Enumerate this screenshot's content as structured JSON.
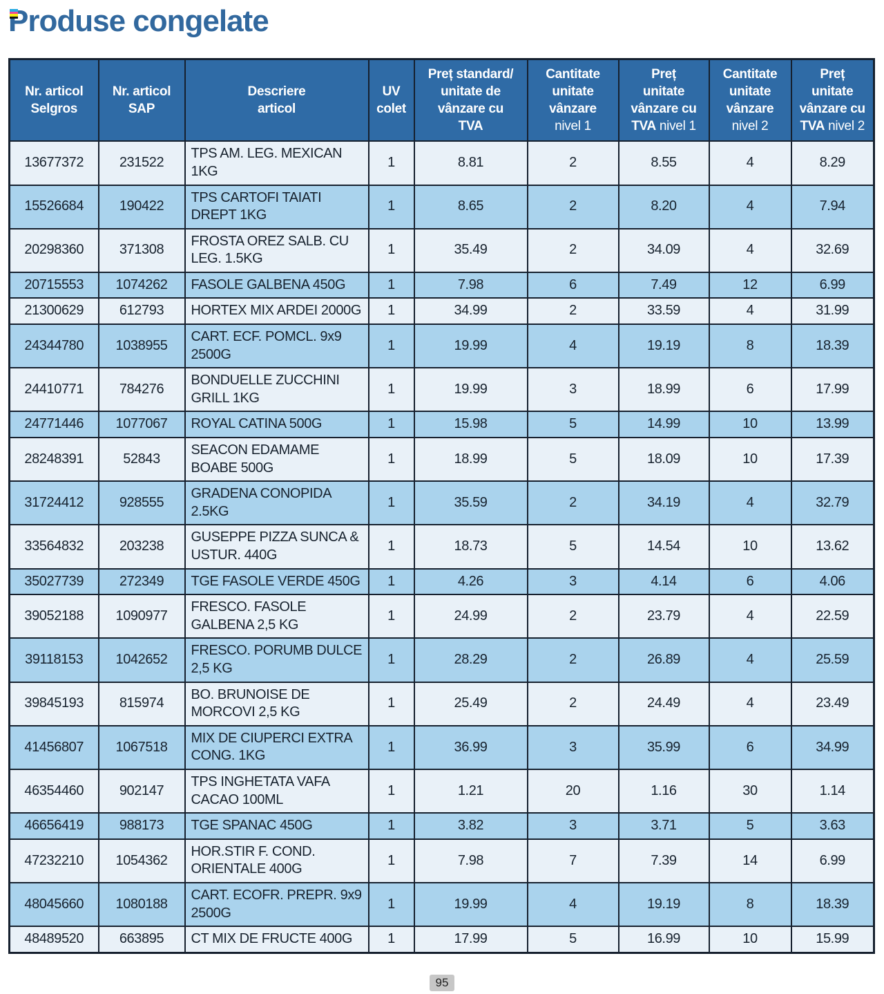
{
  "page": {
    "title": "Produse congelate",
    "page_number": "95",
    "title_color": "#31689e",
    "print_mark_colors": [
      "#29abe2",
      "#ec4899",
      "#f7ec13",
      "#111111"
    ]
  },
  "colors": {
    "header_bg": "#2f6ba6",
    "header_text": "#ffffff",
    "row_light": "#e9f1f8",
    "row_stripe": "#aad3ed",
    "border": "#16202e",
    "cell_text": "#17222e"
  },
  "table": {
    "columns": [
      {
        "key": "selgros",
        "bold": "Nr. articol\nSelgros",
        "normal": ""
      },
      {
        "key": "sap",
        "bold": "Nr. articol\nSAP",
        "normal": ""
      },
      {
        "key": "desc",
        "bold": "Descriere\narticol",
        "normal": ""
      },
      {
        "key": "uv",
        "bold": "UV\ncolet",
        "normal": ""
      },
      {
        "key": "std",
        "bold": "Preț standard/\nunitate de\nvânzare cu\nTVA",
        "normal": ""
      },
      {
        "key": "qty1",
        "bold": "Cantitate\nunitate\nvânzare",
        "normal": "\nnivel 1"
      },
      {
        "key": "p1",
        "bold": "Preț\nunitate\nvânzare cu\nTVA",
        "normal": " nivel 1"
      },
      {
        "key": "qty2",
        "bold": "Cantitate\nunitate\nvânzare",
        "normal": "\nnivel 2"
      },
      {
        "key": "p2",
        "bold": "Preț\nunitate\nvânzare cu\nTVA",
        "normal": " nivel 2"
      }
    ],
    "rows": [
      {
        "selgros": "13677372",
        "sap": "231522",
        "desc": "TPS AM. LEG. MEXICAN 1KG",
        "uv": "1",
        "std": "8.81",
        "qty1": "2",
        "p1": "8.55",
        "qty2": "4",
        "p2": "8.29"
      },
      {
        "selgros": "15526684",
        "sap": "190422",
        "desc": "TPS CARTOFI TAIATI DREPT 1KG",
        "uv": "1",
        "std": "8.65",
        "qty1": "2",
        "p1": "8.20",
        "qty2": "4",
        "p2": "7.94"
      },
      {
        "selgros": "20298360",
        "sap": "371308",
        "desc": "FROSTA OREZ SALB. CU LEG. 1.5KG",
        "uv": "1",
        "std": "35.49",
        "qty1": "2",
        "p1": "34.09",
        "qty2": "4",
        "p2": "32.69"
      },
      {
        "selgros": "20715553",
        "sap": "1074262",
        "desc": "FASOLE GALBENA 450G",
        "uv": "1",
        "std": "7.98",
        "qty1": "6",
        "p1": "7.49",
        "qty2": "12",
        "p2": "6.99"
      },
      {
        "selgros": "21300629",
        "sap": "612793",
        "desc": "HORTEX MIX ARDEI 2000G",
        "uv": "1",
        "std": "34.99",
        "qty1": "2",
        "p1": "33.59",
        "qty2": "4",
        "p2": "31.99"
      },
      {
        "selgros": "24344780",
        "sap": "1038955",
        "desc": "CART. ECF. POMCL. 9x9 2500G",
        "uv": "1",
        "std": "19.99",
        "qty1": "4",
        "p1": "19.19",
        "qty2": "8",
        "p2": "18.39"
      },
      {
        "selgros": "24410771",
        "sap": "784276",
        "desc": "BONDUELLE ZUCCHINI GRILL 1KG",
        "uv": "1",
        "std": "19.99",
        "qty1": "3",
        "p1": "18.99",
        "qty2": "6",
        "p2": "17.99"
      },
      {
        "selgros": "24771446",
        "sap": "1077067",
        "desc": "ROYAL CATINA 500G",
        "uv": "1",
        "std": "15.98",
        "qty1": "5",
        "p1": "14.99",
        "qty2": "10",
        "p2": "13.99"
      },
      {
        "selgros": "28248391",
        "sap": "52843",
        "desc": "SEACON EDAMAME BOABE 500G",
        "uv": "1",
        "std": "18.99",
        "qty1": "5",
        "p1": "18.09",
        "qty2": "10",
        "p2": "17.39"
      },
      {
        "selgros": "31724412",
        "sap": "928555",
        "desc": "GRADENA CONOPIDA 2.5KG",
        "uv": "1",
        "std": "35.59",
        "qty1": "2",
        "p1": "34.19",
        "qty2": "4",
        "p2": "32.79"
      },
      {
        "selgros": "33564832",
        "sap": "203238",
        "desc": "GUSEPPE PIZZA SUNCA & USTUR. 440G",
        "uv": "1",
        "std": "18.73",
        "qty1": "5",
        "p1": "14.54",
        "qty2": "10",
        "p2": "13.62"
      },
      {
        "selgros": "35027739",
        "sap": "272349",
        "desc": "TGE FASOLE VERDE 450G",
        "uv": "1",
        "std": "4.26",
        "qty1": "3",
        "p1": "4.14",
        "qty2": "6",
        "p2": "4.06"
      },
      {
        "selgros": "39052188",
        "sap": "1090977",
        "desc": "FRESCO. FASOLE GALBENA 2,5 KG",
        "uv": "1",
        "std": "24.99",
        "qty1": "2",
        "p1": "23.79",
        "qty2": "4",
        "p2": "22.59"
      },
      {
        "selgros": "39118153",
        "sap": "1042652",
        "desc": "FRESCO. PORUMB DULCE 2,5 KG",
        "uv": "1",
        "std": "28.29",
        "qty1": "2",
        "p1": "26.89",
        "qty2": "4",
        "p2": "25.59"
      },
      {
        "selgros": "39845193",
        "sap": "815974",
        "desc": "BO. BRUNOISE DE MORCOVI 2,5 KG",
        "uv": "1",
        "std": "25.49",
        "qty1": "2",
        "p1": "24.49",
        "qty2": "4",
        "p2": "23.49"
      },
      {
        "selgros": "41456807",
        "sap": "1067518",
        "desc": "MIX DE CIUPERCI EXTRA CONG. 1KG",
        "uv": "1",
        "std": "36.99",
        "qty1": "3",
        "p1": "35.99",
        "qty2": "6",
        "p2": "34.99"
      },
      {
        "selgros": "46354460",
        "sap": "902147",
        "desc": "TPS INGHETATA VAFA CACAO 100ML",
        "uv": "1",
        "std": "1.21",
        "qty1": "20",
        "p1": "1.16",
        "qty2": "30",
        "p2": "1.14"
      },
      {
        "selgros": "46656419",
        "sap": "988173",
        "desc": "TGE SPANAC 450G",
        "uv": "1",
        "std": "3.82",
        "qty1": "3",
        "p1": "3.71",
        "qty2": "5",
        "p2": "3.63"
      },
      {
        "selgros": "47232210",
        "sap": "1054362",
        "desc": "HOR.STIR F. COND. ORIENTALE 400G",
        "uv": "1",
        "std": "7.98",
        "qty1": "7",
        "p1": "7.39",
        "qty2": "14",
        "p2": "6.99"
      },
      {
        "selgros": "48045660",
        "sap": "1080188",
        "desc": "CART. ECOFR. PREPR. 9x9 2500G",
        "uv": "1",
        "std": "19.99",
        "qty1": "4",
        "p1": "19.19",
        "qty2": "8",
        "p2": "18.39"
      },
      {
        "selgros": "48489520",
        "sap": "663895",
        "desc": "CT MIX DE FRUCTE 400G",
        "uv": "1",
        "std": "17.99",
        "qty1": "5",
        "p1": "16.99",
        "qty2": "10",
        "p2": "15.99"
      }
    ]
  }
}
